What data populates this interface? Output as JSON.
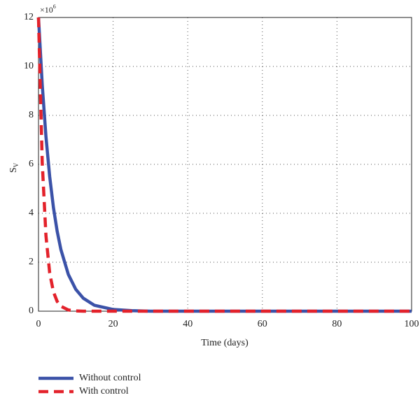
{
  "chart_data": {
    "type": "line",
    "xlabel": "Time (days)",
    "ylabel": "S",
    "ylabel_subscript": "V",
    "y_multiplier": "×10",
    "y_multiplier_exponent": "6",
    "x": [
      0,
      1,
      2,
      3,
      4,
      5,
      6,
      8,
      10,
      12,
      15,
      20,
      25,
      30,
      40,
      50,
      60,
      70,
      80,
      90,
      100
    ],
    "series": [
      {
        "name": "Without control",
        "color": "#3b52a8",
        "dashed": false,
        "values": [
          12,
          9.25,
          7.13,
          5.5,
          4.24,
          3.27,
          2.52,
          1.5,
          0.89,
          0.53,
          0.24,
          0.07,
          0.02,
          0,
          0,
          0,
          0,
          0,
          0,
          0,
          0
        ]
      },
      {
        "name": "With control",
        "color": "#e3222b",
        "dashed": true,
        "values": [
          12,
          6.07,
          3.08,
          1.56,
          0.79,
          0.4,
          0.2,
          0.05,
          0.01,
          0,
          0,
          0,
          0,
          0,
          0,
          0,
          0,
          0,
          0,
          0,
          0
        ]
      }
    ],
    "xlim": [
      0,
      100
    ],
    "xticks": [
      0,
      20,
      40,
      60,
      80,
      100
    ],
    "ylim": [
      0,
      12
    ],
    "yticks": [
      0,
      2,
      4,
      6,
      8,
      10,
      12
    ],
    "grid": true,
    "legend": "bottom-left"
  }
}
